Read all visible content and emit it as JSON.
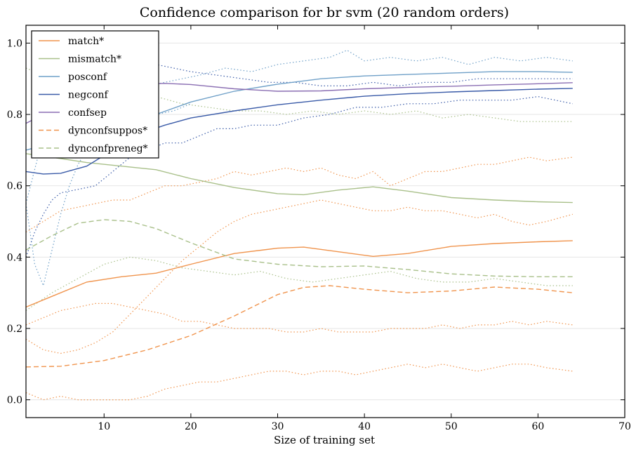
{
  "chart_data": {
    "type": "line",
    "title": "Confidence comparison for br svm (20 random orders)",
    "xlabel": "Size of training set",
    "ylabel": "",
    "xlim": [
      1,
      70
    ],
    "ylim": [
      -0.05,
      1.05
    ],
    "x_ticks": [
      10,
      20,
      30,
      40,
      50,
      60,
      70
    ],
    "y_ticks": [
      0.0,
      0.2,
      0.4,
      0.6,
      0.8,
      1.0
    ],
    "x_tick_labels": [
      "10",
      "20",
      "30",
      "40",
      "50",
      "60",
      "70"
    ],
    "y_tick_labels": [
      "0.0",
      "0.2",
      "0.4",
      "0.6",
      "0.8",
      "1.0"
    ],
    "grid": "horizontal",
    "legend_position": "top-left",
    "series": [
      {
        "name": "match*",
        "color": "#f0944d",
        "style": "solid",
        "x": [
          1,
          4,
          8,
          12,
          16,
          20,
          25,
          30,
          33,
          37,
          41,
          45,
          50,
          55,
          60,
          64
        ],
        "y": [
          0.26,
          0.29,
          0.33,
          0.345,
          0.355,
          0.38,
          0.41,
          0.425,
          0.428,
          0.415,
          0.402,
          0.41,
          0.43,
          0.438,
          0.443,
          0.446
        ]
      },
      {
        "name": "mismatch*",
        "color": "#a9c08a",
        "style": "solid",
        "x": [
          1,
          4,
          8,
          12,
          16,
          20,
          25,
          30,
          33,
          37,
          41,
          45,
          50,
          55,
          60,
          64
        ],
        "y": [
          0.69,
          0.68,
          0.665,
          0.655,
          0.645,
          0.62,
          0.595,
          0.578,
          0.575,
          0.588,
          0.597,
          0.585,
          0.567,
          0.56,
          0.555,
          0.553
        ]
      },
      {
        "name": "posconf",
        "color": "#6fa0c8",
        "style": "solid",
        "x": [
          1,
          4,
          8,
          12,
          16,
          20,
          25,
          30,
          35,
          40,
          45,
          50,
          55,
          60,
          64
        ],
        "y": [
          0.7,
          0.72,
          0.745,
          0.775,
          0.8,
          0.835,
          0.865,
          0.885,
          0.9,
          0.908,
          0.912,
          0.916,
          0.92,
          0.92,
          0.918
        ]
      },
      {
        "name": "negconf",
        "color": "#3a5ba8",
        "style": "solid",
        "x": [
          1,
          3,
          5,
          8,
          11,
          14,
          17,
          20,
          25,
          30,
          35,
          40,
          45,
          50,
          55,
          60,
          64
        ],
        "y": [
          0.64,
          0.633,
          0.635,
          0.655,
          0.7,
          0.745,
          0.77,
          0.79,
          0.81,
          0.827,
          0.84,
          0.851,
          0.858,
          0.863,
          0.867,
          0.871,
          0.873
        ]
      },
      {
        "name": "confsep",
        "color": "#8b6fb3",
        "style": "solid",
        "x": [
          1,
          3,
          5,
          8,
          11,
          14,
          17,
          20,
          25,
          30,
          35,
          40,
          45,
          50,
          55,
          60,
          64
        ],
        "y": [
          0.775,
          0.8,
          0.83,
          0.86,
          0.877,
          0.885,
          0.887,
          0.884,
          0.872,
          0.865,
          0.866,
          0.872,
          0.876,
          0.879,
          0.883,
          0.886,
          0.889
        ]
      },
      {
        "name": "dynconfsuppos*",
        "color": "#f0944d",
        "style": "dashed",
        "x": [
          1,
          5,
          10,
          15,
          20,
          25,
          30,
          33,
          36,
          40,
          45,
          50,
          55,
          60,
          64
        ],
        "y": [
          0.092,
          0.094,
          0.11,
          0.14,
          0.18,
          0.235,
          0.295,
          0.315,
          0.32,
          0.31,
          0.3,
          0.305,
          0.316,
          0.31,
          0.3
        ]
      },
      {
        "name": "dynconfpreneg*",
        "color": "#a9c08a",
        "style": "dashed",
        "x": [
          1,
          4,
          7,
          10,
          13,
          16,
          20,
          25,
          30,
          35,
          40,
          45,
          50,
          55,
          60,
          64
        ],
        "y": [
          0.42,
          0.46,
          0.495,
          0.505,
          0.5,
          0.48,
          0.44,
          0.395,
          0.38,
          0.373,
          0.375,
          0.365,
          0.353,
          0.347,
          0.345,
          0.345
        ]
      }
    ],
    "bands": [
      {
        "of": "match*",
        "color": "#f0944d",
        "bound": "upper",
        "x": [
          1,
          3,
          5,
          7,
          9,
          11,
          13,
          15,
          17,
          19,
          21,
          23,
          25,
          27,
          29,
          31,
          33,
          35,
          37,
          39,
          41,
          43,
          45,
          47,
          49,
          51,
          53,
          55,
          57,
          59,
          61,
          64
        ],
        "y": [
          0.47,
          0.5,
          0.53,
          0.54,
          0.55,
          0.56,
          0.56,
          0.58,
          0.6,
          0.6,
          0.61,
          0.62,
          0.64,
          0.63,
          0.64,
          0.65,
          0.64,
          0.65,
          0.63,
          0.62,
          0.64,
          0.6,
          0.62,
          0.64,
          0.64,
          0.65,
          0.66,
          0.66,
          0.67,
          0.68,
          0.67,
          0.68
        ]
      },
      {
        "of": "match*",
        "color": "#f0944d",
        "bound": "lower",
        "x": [
          1,
          3,
          5,
          7,
          9,
          11,
          13,
          15,
          17,
          19,
          21,
          23,
          25,
          27,
          29,
          31,
          33,
          35,
          37,
          39,
          41,
          43,
          45,
          47,
          49,
          51,
          53,
          55,
          57,
          59,
          61,
          64
        ],
        "y": [
          0.21,
          0.23,
          0.25,
          0.26,
          0.27,
          0.27,
          0.26,
          0.25,
          0.24,
          0.22,
          0.22,
          0.21,
          0.2,
          0.2,
          0.2,
          0.19,
          0.19,
          0.2,
          0.19,
          0.19,
          0.19,
          0.2,
          0.2,
          0.2,
          0.21,
          0.2,
          0.21,
          0.21,
          0.22,
          0.21,
          0.22,
          0.21
        ]
      },
      {
        "of": "dynconfsuppos*",
        "color": "#f0944d",
        "bound": "lower",
        "x": [
          1,
          3,
          5,
          7,
          9,
          11,
          13,
          15,
          17,
          19,
          21,
          23,
          25,
          27,
          29,
          31,
          33,
          35,
          37,
          39,
          41,
          43,
          45,
          47,
          49,
          51,
          53,
          55,
          57,
          59,
          61,
          64
        ],
        "y": [
          0.02,
          0.0,
          0.01,
          0.0,
          0.0,
          0.0,
          0.0,
          0.01,
          0.03,
          0.04,
          0.05,
          0.05,
          0.06,
          0.07,
          0.08,
          0.08,
          0.07,
          0.08,
          0.08,
          0.07,
          0.08,
          0.09,
          0.1,
          0.09,
          0.1,
          0.09,
          0.08,
          0.09,
          0.1,
          0.1,
          0.09,
          0.08
        ]
      },
      {
        "of": "dynconfsuppos*",
        "color": "#f0944d",
        "bound": "upper",
        "x": [
          1,
          3,
          5,
          7,
          9,
          11,
          13,
          15,
          17,
          19,
          21,
          23,
          25,
          27,
          29,
          31,
          33,
          35,
          37,
          39,
          41,
          43,
          45,
          47,
          49,
          51,
          53,
          55,
          57,
          59,
          61,
          64
        ],
        "y": [
          0.17,
          0.14,
          0.13,
          0.14,
          0.16,
          0.19,
          0.24,
          0.29,
          0.34,
          0.39,
          0.43,
          0.47,
          0.5,
          0.52,
          0.53,
          0.54,
          0.55,
          0.56,
          0.55,
          0.54,
          0.53,
          0.53,
          0.54,
          0.53,
          0.53,
          0.52,
          0.51,
          0.52,
          0.5,
          0.49,
          0.5,
          0.52
        ]
      },
      {
        "of": "mismatch*",
        "color": "#a9c08a",
        "bound": "upper",
        "x": [
          1,
          4,
          7,
          10,
          13,
          16,
          19,
          22,
          25,
          28,
          31,
          34,
          37,
          40,
          43,
          46,
          49,
          52,
          55,
          58,
          61,
          64
        ],
        "y": [
          0.93,
          0.9,
          0.88,
          0.87,
          0.86,
          0.85,
          0.83,
          0.82,
          0.81,
          0.81,
          0.8,
          0.81,
          0.8,
          0.81,
          0.8,
          0.81,
          0.79,
          0.8,
          0.79,
          0.78,
          0.78,
          0.78
        ]
      },
      {
        "of": "dynconfpreneg*",
        "color": "#a9c08a",
        "bound": "lower",
        "x": [
          1,
          4,
          7,
          10,
          13,
          16,
          19,
          22,
          25,
          28,
          31,
          34,
          37,
          40,
          43,
          46,
          49,
          52,
          55,
          58,
          61,
          64
        ],
        "y": [
          0.25,
          0.3,
          0.34,
          0.38,
          0.4,
          0.39,
          0.37,
          0.36,
          0.35,
          0.36,
          0.34,
          0.33,
          0.34,
          0.35,
          0.36,
          0.34,
          0.33,
          0.33,
          0.34,
          0.33,
          0.32,
          0.32
        ]
      },
      {
        "of": "posconf",
        "color": "#6fa0c8",
        "bound": "upper",
        "x": [
          1,
          3,
          5,
          7,
          9,
          11,
          13,
          15,
          17,
          19,
          21,
          24,
          27,
          30,
          33,
          36,
          38,
          40,
          43,
          46,
          49,
          52,
          55,
          58,
          61,
          64
        ],
        "y": [
          0.55,
          0.74,
          0.8,
          0.84,
          0.87,
          0.88,
          0.86,
          0.88,
          0.89,
          0.9,
          0.91,
          0.93,
          0.92,
          0.94,
          0.95,
          0.96,
          0.98,
          0.95,
          0.96,
          0.95,
          0.96,
          0.94,
          0.96,
          0.95,
          0.96,
          0.95
        ]
      },
      {
        "of": "posconf",
        "color": "#6fa0c8",
        "bound": "lower",
        "x": [
          1,
          2,
          3,
          4,
          5,
          6,
          7,
          8,
          9,
          10,
          12,
          14,
          16,
          18,
          20
        ],
        "y": [
          0.55,
          0.38,
          0.32,
          0.42,
          0.52,
          0.6,
          0.66,
          0.7,
          0.72,
          0.74,
          0.76,
          0.79,
          0.8,
          0.81,
          0.83
        ]
      },
      {
        "of": "negconf",
        "color": "#3a5ba8",
        "bound": "lower",
        "x": [
          1,
          2,
          3,
          4,
          5,
          7,
          9,
          11,
          13,
          15,
          17,
          19,
          21,
          23,
          25,
          27,
          30,
          33,
          36,
          39,
          42,
          45,
          48,
          51,
          54,
          57,
          60,
          62,
          64
        ],
        "y": [
          0.4,
          0.47,
          0.52,
          0.56,
          0.58,
          0.59,
          0.6,
          0.64,
          0.68,
          0.7,
          0.72,
          0.72,
          0.74,
          0.76,
          0.76,
          0.77,
          0.77,
          0.79,
          0.8,
          0.82,
          0.82,
          0.83,
          0.83,
          0.84,
          0.84,
          0.84,
          0.85,
          0.84,
          0.83
        ]
      },
      {
        "of": "confsep",
        "color": "#3a5ba8",
        "bound": "upper",
        "x": [
          8,
          10,
          12,
          14,
          16,
          18,
          20,
          23,
          26,
          29,
          32,
          35,
          38,
          41,
          44,
          47,
          50,
          53,
          56,
          59,
          62,
          64
        ],
        "y": [
          0.91,
          0.92,
          0.93,
          0.94,
          0.94,
          0.93,
          0.92,
          0.91,
          0.9,
          0.89,
          0.89,
          0.88,
          0.88,
          0.89,
          0.88,
          0.89,
          0.89,
          0.9,
          0.9,
          0.9,
          0.9,
          0.9
        ]
      }
    ]
  }
}
